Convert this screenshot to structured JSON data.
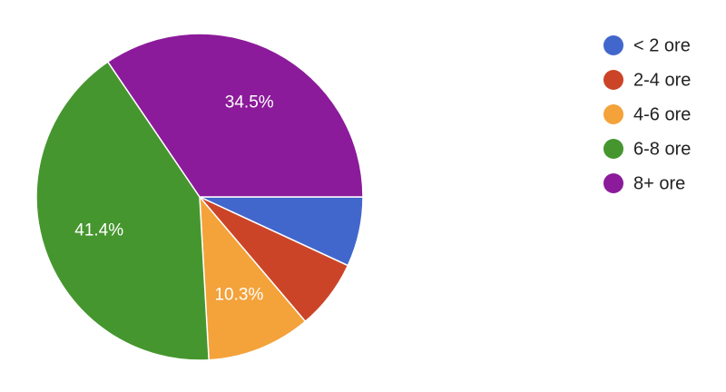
{
  "chart_data": {
    "type": "pie",
    "categories": [
      "< 2 ore",
      "2-4 ore",
      "4-6 ore",
      "6-8 ore",
      "8+ ore"
    ],
    "values": [
      6.9,
      6.9,
      10.3,
      41.4,
      34.5
    ],
    "value_labels": [
      null,
      null,
      "10.3%",
      "41.4%",
      "34.5%"
    ],
    "colors": [
      "#4267cc",
      "#cc4427",
      "#f4a23a",
      "#46962f",
      "#8b1b9a"
    ],
    "legend": "right"
  }
}
